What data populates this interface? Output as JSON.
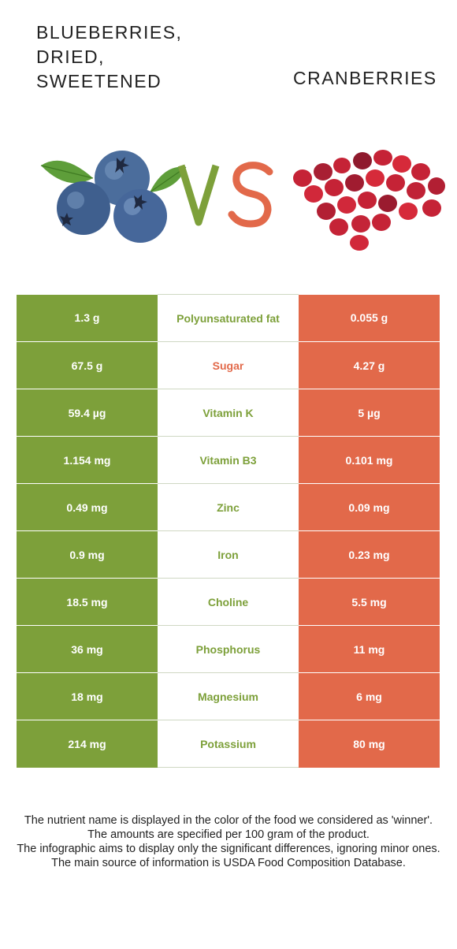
{
  "left_food": {
    "name": "Blueberries,\ndried,\nsweetened",
    "color": "#7da03a"
  },
  "right_food": {
    "name": "Cranberries",
    "color": "#e2694a"
  },
  "vs_label": {
    "v": "V",
    "s": "S"
  },
  "rows": [
    {
      "nutrient": "Polyunsaturated fat",
      "left": "1.3 g",
      "right": "0.055 g",
      "winner": "left"
    },
    {
      "nutrient": "Sugar",
      "left": "67.5 g",
      "right": "4.27 g",
      "winner": "right"
    },
    {
      "nutrient": "Vitamin K",
      "left": "59.4 µg",
      "right": "5 µg",
      "winner": "left"
    },
    {
      "nutrient": "Vitamin B3",
      "left": "1.154 mg",
      "right": "0.101 mg",
      "winner": "left"
    },
    {
      "nutrient": "Zinc",
      "left": "0.49 mg",
      "right": "0.09 mg",
      "winner": "left"
    },
    {
      "nutrient": "Iron",
      "left": "0.9 mg",
      "right": "0.23 mg",
      "winner": "left"
    },
    {
      "nutrient": "Choline",
      "left": "18.5 mg",
      "right": "5.5 mg",
      "winner": "left"
    },
    {
      "nutrient": "Phosphorus",
      "left": "36 mg",
      "right": "11 mg",
      "winner": "left"
    },
    {
      "nutrient": "Magnesium",
      "left": "18 mg",
      "right": "6 mg",
      "winner": "left"
    },
    {
      "nutrient": "Potassium",
      "left": "214 mg",
      "right": "80 mg",
      "winner": "left"
    }
  ],
  "footer": [
    "The nutrient name is displayed in the color of the food we considered as 'winner'.",
    "The amounts are specified per 100 gram of the product.",
    "The infographic aims to display only the significant differences, ignoring minor ones.",
    "The main source of information is USDA Food Composition Database."
  ]
}
